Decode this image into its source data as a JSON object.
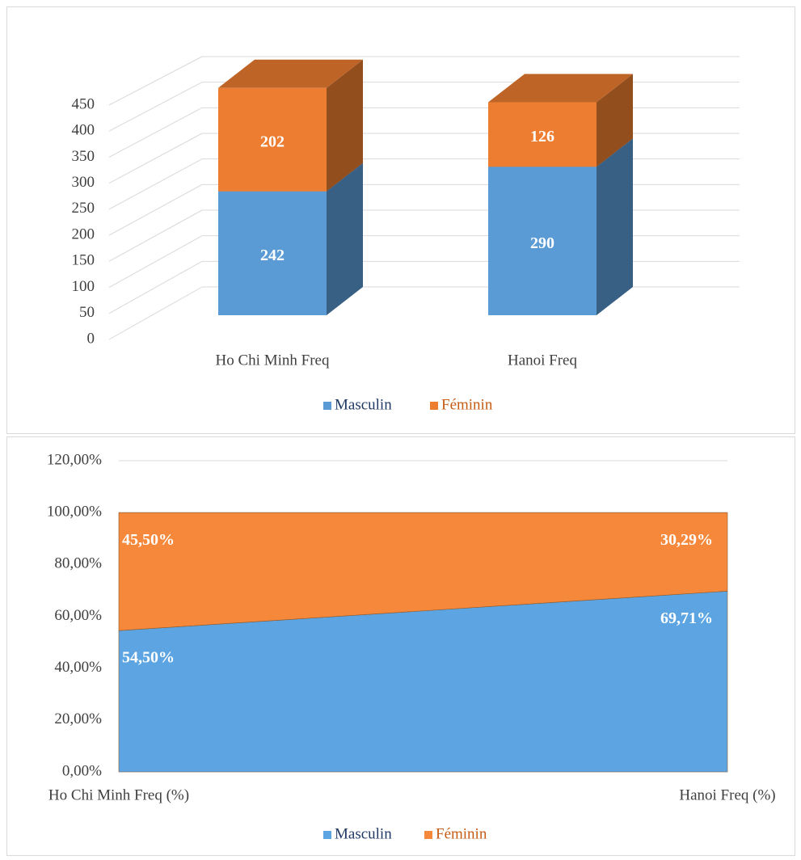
{
  "charts": [
    {
      "chart_data": {
        "type": "bar3d",
        "stacked": true,
        "categories": [
          "Ho Chi Minh Freq",
          "Hanoi Freq"
        ],
        "series": [
          {
            "name": "Masculin",
            "color": "#5b9bd5",
            "values": [
              242,
              290
            ]
          },
          {
            "name": "Féminin",
            "color": "#ed7d31",
            "values": [
              202,
              126
            ]
          }
        ],
        "ylim": [
          0,
          450
        ],
        "yticks": [
          0,
          50,
          100,
          150,
          200,
          250,
          300,
          350,
          400,
          450
        ],
        "grid": true,
        "legend": "bottom"
      }
    },
    {
      "chart_data": {
        "type": "area",
        "stacked": true,
        "categories": [
          "Ho Chi Minh Freq (%)",
          "Hanoi Freq (%)"
        ],
        "series": [
          {
            "name": "Masculin",
            "color": "#5da5e2",
            "values": [
              54.5,
              69.71
            ],
            "value_labels": [
              "54,50%",
              "69,71%"
            ]
          },
          {
            "name": "Féminin",
            "color": "#f5883a",
            "values": [
              45.5,
              30.29
            ],
            "value_labels": [
              "45,50%",
              "30,29%"
            ]
          }
        ],
        "ylim": [
          0,
          120
        ],
        "yticks": [
          {
            "value": 0,
            "label": "0,00%"
          },
          {
            "value": 20,
            "label": "20,00%"
          },
          {
            "value": 40,
            "label": "40,00%"
          },
          {
            "value": 60,
            "label": "60,00%"
          },
          {
            "value": 80,
            "label": "80,00%"
          },
          {
            "value": 100,
            "label": "100,00%"
          },
          {
            "value": 120,
            "label": "120,00%"
          }
        ],
        "grid": true,
        "legend": "bottom"
      }
    }
  ]
}
